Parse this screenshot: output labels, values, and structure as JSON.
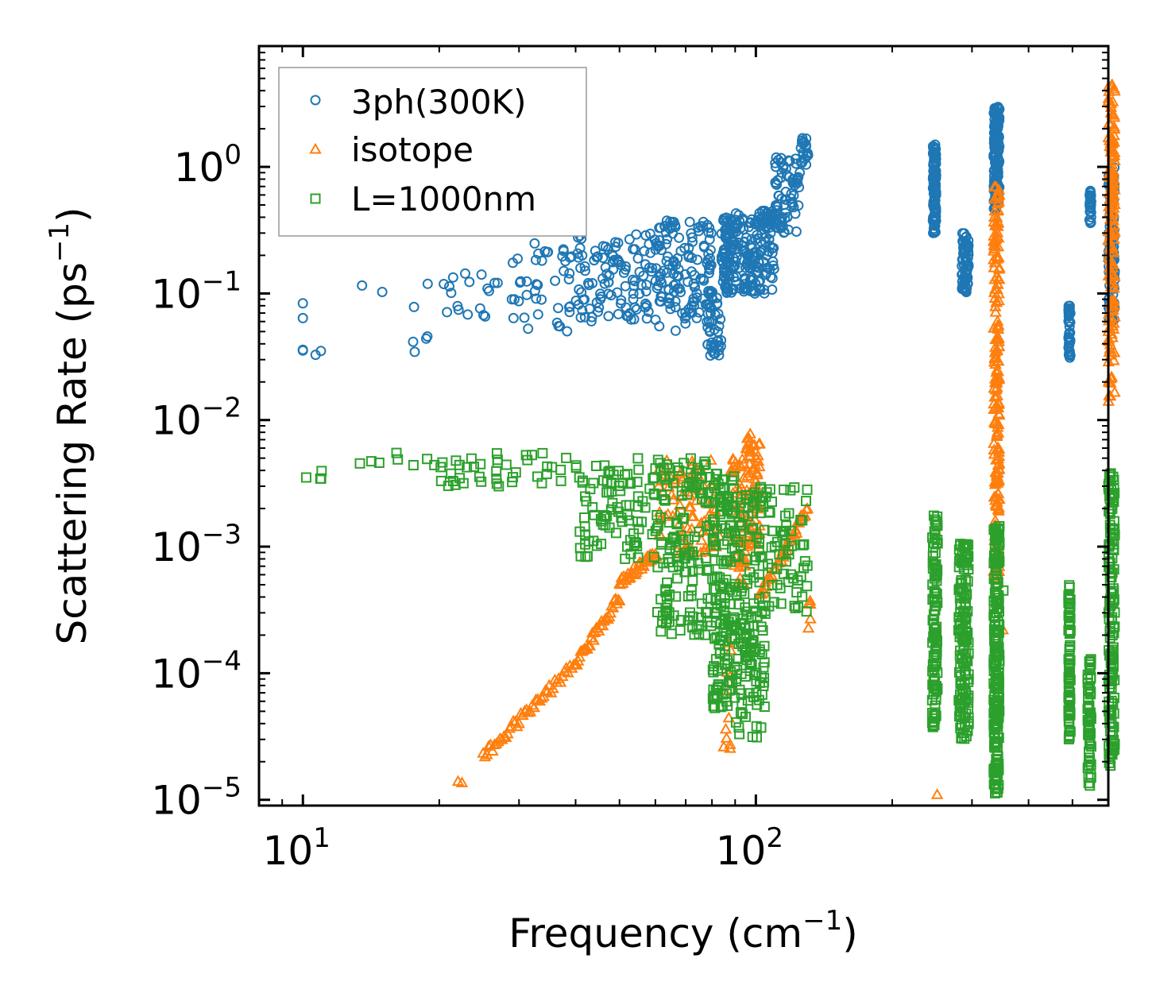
{
  "chart_data": {
    "type": "scatter",
    "xscale": "log",
    "yscale": "log",
    "xlim": [
      8,
      600
    ],
    "ylim": [
      9e-06,
      9
    ],
    "xlabel": {
      "main": "Frequency (cm",
      "sup": "−1",
      "end": ")"
    },
    "ylabel": {
      "main": "Scattering Rate (ps",
      "sup": "−1",
      "end": ")"
    },
    "xticks": [
      {
        "base": "10",
        "exp": "1",
        "value": 10
      },
      {
        "base": "10",
        "exp": "2",
        "value": 100
      }
    ],
    "yticks": [
      {
        "base": "10",
        "exp": "0",
        "value": 1
      },
      {
        "base": "10",
        "exp": "−1",
        "value": 0.1
      },
      {
        "base": "10",
        "exp": "−2",
        "value": 0.01
      },
      {
        "base": "10",
        "exp": "−3",
        "value": 0.001
      },
      {
        "base": "10",
        "exp": "−4",
        "value": 0.0001
      },
      {
        "base": "10",
        "exp": "−5",
        "value": 1e-05
      }
    ],
    "legend_position": "top-left",
    "series": [
      {
        "name": "3ph(300K)",
        "marker": "circle",
        "color": "#1f77b4",
        "clusters": [
          {
            "f": [
              10,
              10
            ],
            "r": [
              0.034,
              0.1
            ],
            "n": 4
          },
          {
            "f": [
              10.5,
              11
            ],
            "r": [
              0.032,
              0.036
            ],
            "n": 2
          },
          {
            "f": [
              13,
              15
            ],
            "r": [
              0.1,
              0.12
            ],
            "n": 2
          },
          {
            "f": [
              17,
              19
            ],
            "r": [
              0.033,
              0.13
            ],
            "n": 6
          },
          {
            "f": [
              20,
              30
            ],
            "r": [
              0.06,
              0.2
            ],
            "n": 24
          },
          {
            "f": [
              30,
              40
            ],
            "r": [
              0.05,
              0.38
            ],
            "n": 40
          },
          {
            "f": [
              40,
              60
            ],
            "r": [
              0.06,
              0.3
            ],
            "n": 110
          },
          {
            "f": [
              60,
              80
            ],
            "r": [
              0.05,
              0.4
            ],
            "n": 140
          },
          {
            "f": [
              78,
              84
            ],
            "r": [
              0.032,
              0.12
            ],
            "n": 40
          },
          {
            "f": [
              84,
              90
            ],
            "r": [
              0.1,
              0.4
            ],
            "n": 90
          },
          {
            "f": [
              90,
              110
            ],
            "r": [
              0.1,
              0.45
            ],
            "n": 150
          },
          {
            "f": [
              110,
              125
            ],
            "r": [
              0.3,
              1.2
            ],
            "n": 70
          },
          {
            "f": [
              125,
              131
            ],
            "r": [
              1.0,
              1.8
            ],
            "n": 20
          },
          {
            "f": [
              246,
              250
            ],
            "r": [
              0.3,
              1.5
            ],
            "n": 110
          },
          {
            "f": [
              285,
              295
            ],
            "r": [
              0.1,
              0.3
            ],
            "n": 70
          },
          {
            "f": [
              335,
              345
            ],
            "r": [
              0.45,
              3.0
            ],
            "n": 140
          },
          {
            "f": [
              490,
              495
            ],
            "r": [
              0.03,
              0.08
            ],
            "n": 45
          },
          {
            "f": [
              545,
              550
            ],
            "r": [
              0.35,
              0.65
            ],
            "n": 30
          },
          {
            "f": [
              600,
              620
            ],
            "r": [
              0.06,
              1.0
            ],
            "n": 110
          }
        ]
      },
      {
        "name": "isotope",
        "marker": "triangle",
        "color": "#ff7f0e",
        "clusters": [
          {
            "f": [
              22,
              23
            ],
            "r": [
              1.3e-05,
              1.4e-05
            ],
            "n": 2
          },
          {
            "f": [
              25,
              40
            ],
            "r": [
              2.2e-05,
              0.00012
            ],
            "curve": true,
            "n": 50
          },
          {
            "f": [
              40,
              50
            ],
            "r": [
              0.00012,
              0.0004
            ],
            "curve": true,
            "n": 35
          },
          {
            "f": [
              50,
              60
            ],
            "r": [
              0.0005,
              0.0009
            ],
            "curve": true,
            "n": 35
          },
          {
            "f": [
              60,
              84
            ],
            "r": [
              0.0008,
              0.005
            ],
            "n": 90
          },
          {
            "f": [
              84,
              88
            ],
            "r": [
              2.5e-05,
              0.0002
            ],
            "n": 12
          },
          {
            "f": [
              88,
              95
            ],
            "r": [
              0.0005,
              0.005
            ],
            "n": 50
          },
          {
            "f": [
              95,
              102
            ],
            "r": [
              0.001,
              0.0085
            ],
            "n": 70
          },
          {
            "f": [
              102,
              130
            ],
            "r": [
              0.0004,
              0.002
            ],
            "curve": true,
            "n": 45
          },
          {
            "f": [
              130,
              132
            ],
            "r": [
              0.00022,
              0.0004
            ],
            "n": 5
          },
          {
            "f": [
              250,
              252
            ],
            "r": [
              1.1e-05,
              1.1e-05
            ],
            "n": 1
          },
          {
            "f": [
              335,
              345
            ],
            "r": [
              0.0005,
              0.7
            ],
            "n": 200
          },
          {
            "f": [
              350,
              352
            ],
            "r": [
              0.00022,
              0.00022
            ],
            "n": 1
          },
          {
            "f": [
              600,
              620
            ],
            "r": [
              0.014,
              4.5
            ],
            "n": 160
          }
        ]
      },
      {
        "name": "L=1000nm",
        "marker": "square",
        "color": "#2ca02c",
        "clusters": [
          {
            "f": [
              10,
              11
            ],
            "r": [
              0.0033,
              0.004
            ],
            "n": 4
          },
          {
            "f": [
              13,
              20
            ],
            "r": [
              0.0033,
              0.0058
            ],
            "n": 8
          },
          {
            "f": [
              20,
              40
            ],
            "r": [
              0.003,
              0.0055
            ],
            "n": 40
          },
          {
            "f": [
              40,
              60
            ],
            "r": [
              0.0008,
              0.005
            ],
            "n": 90
          },
          {
            "f": [
              60,
              80
            ],
            "r": [
              0.0002,
              0.005
            ],
            "n": 150
          },
          {
            "f": [
              80,
              90
            ],
            "r": [
              5e-05,
              0.004
            ],
            "n": 150
          },
          {
            "f": [
              90,
              105
            ],
            "r": [
              3e-05,
              0.003
            ],
            "n": 150
          },
          {
            "f": [
              105,
              131
            ],
            "r": [
              0.0003,
              0.003
            ],
            "n": 60
          },
          {
            "f": [
              245,
              252
            ],
            "r": [
              3.5e-05,
              0.0019
            ],
            "n": 110
          },
          {
            "f": [
              280,
              295
            ],
            "r": [
              3e-05,
              0.0011
            ],
            "n": 150
          },
          {
            "f": [
              335,
              345
            ],
            "r": [
              1.1e-05,
              0.0015
            ],
            "n": 200
          },
          {
            "f": [
              350,
              352
            ],
            "r": [
              0.00045,
              0.00045
            ],
            "n": 1
          },
          {
            "f": [
              490,
              495
            ],
            "r": [
              3e-05,
              0.0005
            ],
            "n": 80
          },
          {
            "f": [
              540,
              550
            ],
            "r": [
              1.2e-05,
              0.00013
            ],
            "n": 60
          },
          {
            "f": [
              600,
              620
            ],
            "r": [
              1.8e-05,
              0.004
            ],
            "n": 140
          }
        ]
      }
    ]
  }
}
